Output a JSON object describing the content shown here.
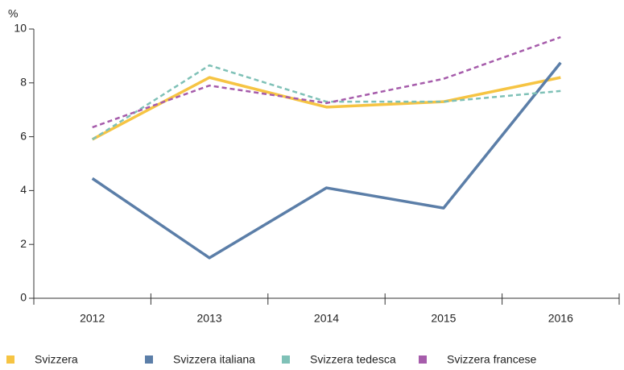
{
  "chart_data": {
    "type": "line",
    "y_label": "%",
    "categories": [
      "2012",
      "2013",
      "2014",
      "2015",
      "2016"
    ],
    "series": [
      {
        "name": "Svizzera",
        "color": "#f6c443",
        "dashed": false,
        "values": [
          5.9,
          8.2,
          7.1,
          7.3,
          8.2
        ]
      },
      {
        "name": "Svizzera italiana",
        "color": "#5b7ea8",
        "dashed": false,
        "values": [
          4.45,
          1.5,
          4.1,
          3.35,
          8.75
        ]
      },
      {
        "name": "Svizzera tedesca",
        "color": "#7fc1b7",
        "dashed": true,
        "values": [
          5.9,
          8.65,
          7.3,
          7.3,
          7.7
        ]
      },
      {
        "name": "Svizzera francese",
        "color": "#a65cab",
        "dashed": true,
        "values": [
          6.35,
          7.9,
          7.25,
          8.15,
          9.7
        ]
      }
    ],
    "ylim": [
      0,
      10
    ],
    "yticks": [
      0,
      2,
      4,
      6,
      8,
      10
    ],
    "grid": false
  }
}
